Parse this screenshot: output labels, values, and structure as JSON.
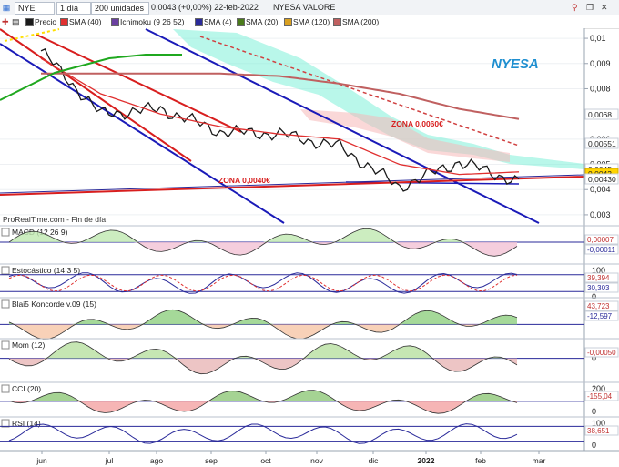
{
  "toolbar": {
    "ticker": "NYE",
    "interval": "1 día",
    "units": "200 unidades",
    "quote": "0,0043 (+0,00%) 22-feb-2022",
    "name": "NYESA VALORE"
  },
  "legend": [
    {
      "label": "Precio",
      "color": "#1a1a1a"
    },
    {
      "label": "SMA (40)",
      "color": "#e03030"
    },
    {
      "label": "Ichimoku (9 26 52)",
      "color": "#6a3fa0"
    },
    {
      "label": "SMA (4)",
      "color": "#2a2a9a"
    },
    {
      "label": "SMA (20)",
      "color": "#4a7a1a"
    },
    {
      "label": "SMA (120)",
      "color": "#d9a020"
    },
    {
      "label": "SMA (200)",
      "color": "#c06060"
    }
  ],
  "main_title": "NYESA",
  "source_label": "ProRealTime.com - Fin de día",
  "zones": {
    "upper": "ZONA 0,0060€",
    "lower": "ZONA 0,0040€"
  },
  "price_axis": {
    "ticks": [
      "0,01",
      "0,009",
      "0,008",
      "0,006",
      "0,005",
      "0,004",
      "0,003"
    ],
    "tags": [
      {
        "label": "0,0068",
        "color": "#c0392b",
        "bg": "#ffffff"
      },
      {
        "label": "0,00551",
        "color": "#c0392b",
        "bg": "#ffffff"
      },
      {
        "label": "0,0045",
        "color": "#222222",
        "bg": "#ffffff"
      },
      {
        "label": "0,0043",
        "color": "#000000",
        "bg": "#ffd400"
      },
      {
        "label": "0,00430",
        "color": "#222222",
        "bg": "#ffffff"
      }
    ]
  },
  "x_axis": {
    "labels": [
      "jun",
      "jul",
      "ago",
      "sep",
      "oct",
      "nov",
      "dic",
      "2022",
      "feb",
      "mar"
    ]
  },
  "panels": {
    "macd": {
      "title": "MACD (12 26 9)",
      "values": [
        "0,00007",
        "-0,00011"
      ],
      "scale": [
        "0"
      ]
    },
    "stoch": {
      "title": "Estocástico (14 3 5)",
      "values": [
        "39,394",
        "30,303"
      ],
      "scale": [
        "100",
        "0"
      ]
    },
    "blai": {
      "title": "Blai5 Koncorde v.09 (15)",
      "values": [
        "43,723",
        "-12,597"
      ],
      "scale": []
    },
    "mom": {
      "title": "Mom (12)",
      "values": [
        "-0,00050"
      ],
      "scale": [
        "0"
      ]
    },
    "cci": {
      "title": "CCI (20)",
      "values": [
        "-155,04"
      ],
      "scale": [
        "200",
        "0"
      ]
    },
    "rsi": {
      "title": "RSI (14)",
      "values": [
        "38,651"
      ],
      "scale": [
        "100",
        "0"
      ]
    }
  },
  "chart_data": {
    "type": "line",
    "title": "NYESA",
    "x": [
      "jun",
      "jul",
      "ago",
      "sep",
      "oct",
      "nov",
      "dic",
      "2022",
      "feb"
    ],
    "series": [
      {
        "name": "Precio",
        "values": [
          0.0095,
          0.007,
          0.0072,
          0.0063,
          0.0062,
          0.0057,
          0.0041,
          0.0051,
          0.0043
        ]
      },
      {
        "name": "SMA (40)",
        "values": [
          0.0092,
          0.0078,
          0.007,
          0.0065,
          0.0062,
          0.006,
          0.005,
          0.0046,
          0.0047
        ]
      },
      {
        "name": "SMA (200)",
        "values": [
          0.0086,
          0.0086,
          0.0086,
          0.0086,
          0.0085,
          0.0082,
          0.0078,
          0.0072,
          0.0068
        ]
      }
    ],
    "ylim": [
      0.0026,
      0.0104
    ],
    "grid": true,
    "legend": "top-left"
  }
}
